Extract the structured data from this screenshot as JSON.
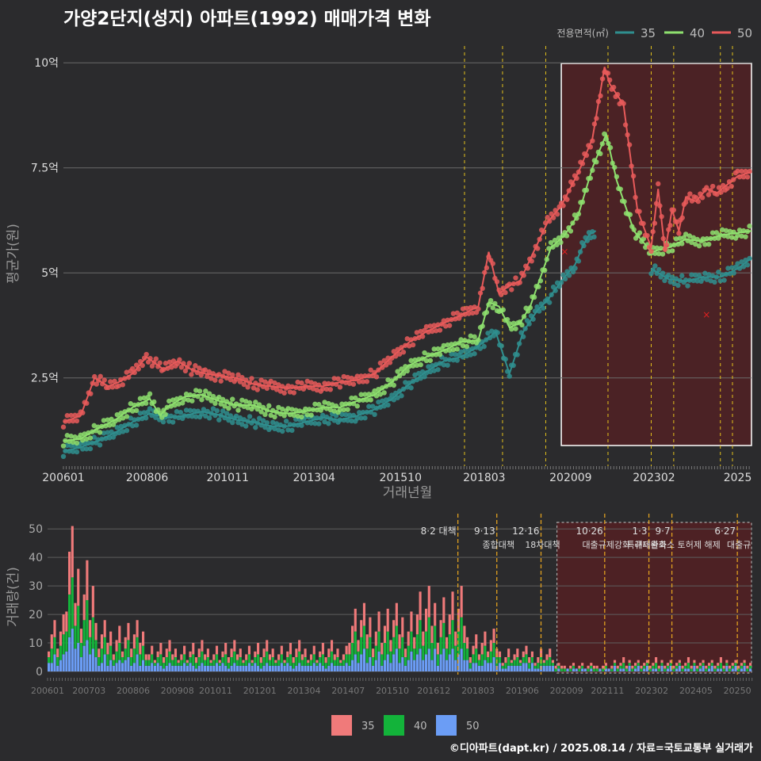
{
  "title": "가양2단지(성지) 아파트(1992) 매매가격 변화",
  "credit": "©디아파트(dapt.kr) / 2025.08.14 / 자료=국토교통부 실거래가",
  "colors": {
    "s35": "#2f8f8f",
    "s40": "#8ee06e",
    "s50": "#e85a5a",
    "bar35": "#f07a7a",
    "bar40": "#13b33a",
    "bar50": "#6b9df5",
    "policy": "#e3c11c",
    "highlight": "#5a1f22"
  },
  "chart_data": [
    {
      "type": "line",
      "title": "가양2단지(성지) 아파트(1992) 매매가격 변화",
      "xlabel": "거래년월",
      "ylabel": "평균가(원)",
      "yticks": [
        {
          "v": 2.5,
          "label": "2.5억"
        },
        {
          "v": 5,
          "label": "5억"
        },
        {
          "v": 7.5,
          "label": "7.5억"
        },
        {
          "v": 10,
          "label": "10억"
        }
      ],
      "ylim": [
        0.4,
        10.4
      ],
      "xlim": [
        2006.0,
        2025.9
      ],
      "xticks": [
        {
          "v": 2006.0,
          "label": "200601"
        },
        {
          "v": 2008.42,
          "label": "200806"
        },
        {
          "v": 2010.75,
          "label": "201011"
        },
        {
          "v": 2013.25,
          "label": "201304"
        },
        {
          "v": 2015.75,
          "label": "201510"
        },
        {
          "v": 2018.17,
          "label": "201803"
        },
        {
          "v": 2020.67,
          "label": "202009"
        },
        {
          "v": 2023.08,
          "label": "202302"
        },
        {
          "v": 2025.5,
          "label": "2025"
        }
      ],
      "legend_title": "전용면적(㎡)",
      "legend_position": "top-right",
      "policy_lines": [
        2017.6,
        2018.7,
        2019.95,
        2021.75,
        2023.0,
        2023.65,
        2025.0,
        2025.35
      ],
      "highlight_range": [
        2020.4,
        2025.9
      ],
      "series": [
        {
          "name": "35",
          "x": [
            2006.0,
            2006.5,
            2007.0,
            2007.5,
            2008.0,
            2008.5,
            2009.0,
            2009.5,
            2010.0,
            2010.5,
            2011.0,
            2011.5,
            2012.0,
            2012.5,
            2013.0,
            2013.5,
            2014.0,
            2014.5,
            2015.0,
            2015.5,
            2016.0,
            2016.5,
            2017.0,
            2017.5,
            2018.0,
            2018.5,
            2018.9,
            2019.3,
            2019.7,
            2020.0,
            2020.4,
            2020.8,
            2021.0,
            2021.2,
            2021.4
          ],
          "values": [
            0.75,
            0.85,
            1.0,
            1.2,
            1.45,
            1.65,
            1.55,
            1.6,
            1.7,
            1.62,
            1.5,
            1.45,
            1.35,
            1.35,
            1.45,
            1.55,
            1.5,
            1.6,
            1.75,
            2.0,
            2.35,
            2.65,
            2.9,
            3.0,
            3.25,
            3.6,
            2.6,
            3.6,
            4.1,
            4.35,
            4.8,
            5.2,
            5.6,
            5.9,
            6.0
          ]
        },
        {
          "name": "35",
          "x": [
            2023.0,
            2023.5,
            2024.0,
            2024.5,
            2025.0,
            2025.5,
            2025.9
          ],
          "values": [
            5.1,
            4.85,
            4.8,
            4.9,
            4.9,
            5.1,
            5.35
          ]
        },
        {
          "name": "40",
          "x": [
            2006.0,
            2006.5,
            2007.0,
            2007.5,
            2008.0,
            2008.5,
            2008.8,
            2009.0,
            2009.5,
            2010.0,
            2010.5,
            2011.0,
            2011.5,
            2012.0,
            2012.5,
            2013.0,
            2013.5,
            2014.0,
            2014.5,
            2015.0,
            2015.5,
            2016.0,
            2016.5,
            2017.0,
            2017.5,
            2018.0,
            2018.3,
            2018.6,
            2018.9,
            2019.2,
            2019.5,
            2019.8,
            2020.1,
            2020.5,
            2020.9,
            2021.3,
            2021.7,
            2022.0,
            2022.5,
            2023.0,
            2023.5,
            2024.0,
            2024.5,
            2025.0,
            2025.5,
            2025.9
          ],
          "values": [
            1.0,
            1.05,
            1.3,
            1.5,
            1.8,
            2.0,
            1.6,
            1.8,
            2.05,
            2.1,
            1.95,
            1.85,
            1.85,
            1.7,
            1.65,
            1.7,
            1.8,
            1.8,
            1.95,
            2.1,
            2.4,
            2.8,
            3.0,
            3.15,
            3.35,
            3.4,
            4.3,
            4.2,
            3.7,
            3.8,
            4.2,
            4.9,
            5.6,
            5.9,
            6.4,
            7.5,
            8.3,
            7.2,
            6.0,
            5.5,
            5.6,
            5.8,
            5.75,
            5.9,
            5.95,
            6.0
          ]
        },
        {
          "name": "50",
          "x": [
            2006.0,
            2006.5,
            2006.9,
            2007.3,
            2007.6,
            2008.0,
            2008.4,
            2008.9,
            2009.3,
            2009.7,
            2010.1,
            2010.5,
            2011.0,
            2011.5,
            2012.0,
            2012.5,
            2013.0,
            2013.5,
            2014.0,
            2014.5,
            2015.0,
            2015.5,
            2016.0,
            2016.5,
            2017.0,
            2017.5,
            2018.0,
            2018.3,
            2018.6,
            2018.9,
            2019.2,
            2019.6,
            2020.0,
            2020.4,
            2020.9,
            2021.3,
            2021.65,
            2021.8,
            2022.2,
            2022.6,
            2023.0,
            2023.2,
            2023.4,
            2023.6,
            2023.8,
            2024.0,
            2024.3,
            2024.6,
            2024.9,
            2025.2,
            2025.5,
            2025.9
          ],
          "values": [
            1.45,
            1.6,
            2.5,
            2.3,
            2.4,
            2.6,
            3.0,
            2.7,
            2.9,
            2.7,
            2.6,
            2.55,
            2.5,
            2.35,
            2.3,
            2.25,
            2.3,
            2.3,
            2.4,
            2.45,
            2.6,
            3.0,
            3.35,
            3.6,
            3.8,
            4.0,
            4.2,
            5.5,
            4.5,
            4.7,
            4.8,
            5.5,
            6.2,
            6.6,
            7.4,
            8.2,
            9.9,
            9.5,
            9.0,
            6.5,
            5.6,
            7.0,
            5.5,
            6.5,
            6.0,
            6.8,
            6.7,
            7.0,
            6.9,
            7.1,
            7.3,
            7.4
          ]
        }
      ]
    },
    {
      "type": "bar",
      "stacked": true,
      "ylabel": "거래량(건)",
      "yticks": [
        0,
        10,
        20,
        30,
        40,
        50
      ],
      "ylim": [
        0,
        52
      ],
      "xlim": [
        2006.0,
        2025.9
      ],
      "xticks": [
        {
          "v": 2006.0,
          "label": "200601"
        },
        {
          "v": 2007.17,
          "label": "200703"
        },
        {
          "v": 2008.42,
          "label": "200806"
        },
        {
          "v": 2009.67,
          "label": "200908"
        },
        {
          "v": 2010.75,
          "label": "201011"
        },
        {
          "v": 2012.0,
          "label": "201201"
        },
        {
          "v": 2013.25,
          "label": "201304"
        },
        {
          "v": 2014.5,
          "label": "201407"
        },
        {
          "v": 2015.75,
          "label": "201510"
        },
        {
          "v": 2016.92,
          "label": "201612"
        },
        {
          "v": 2018.17,
          "label": "201803"
        },
        {
          "v": 2019.42,
          "label": "201906"
        },
        {
          "v": 2020.67,
          "label": "202009"
        },
        {
          "v": 2021.83,
          "label": "202111"
        },
        {
          "v": 2023.08,
          "label": "202302"
        },
        {
          "v": 2024.33,
          "label": "202405"
        },
        {
          "v": 2025.5,
          "label": "20250"
        }
      ],
      "legend_position": "bottom",
      "legend": [
        "35",
        "40",
        "50"
      ],
      "policy": [
        {
          "x": 2017.6,
          "date": "8·2 대책",
          "label": ""
        },
        {
          "x": 2018.7,
          "date": "9·13",
          "label": "종합대책"
        },
        {
          "x": 2019.95,
          "date": "12·16",
          "label": "18차대책"
        },
        {
          "x": 2021.75,
          "date": "10·26",
          "label": "대출규제강화"
        },
        {
          "x": 2023.0,
          "date": "1·3",
          "label": "규제완화"
        },
        {
          "x": 2023.65,
          "date": "9·7",
          "label": "특례대출축소 토허제 해제"
        },
        {
          "x": 2025.5,
          "date": "6·27",
          "label": "대출규"
        }
      ],
      "highlight_range": [
        2020.4,
        2025.9
      ],
      "peak_labels": {
        "max": 51
      }
    }
  ]
}
